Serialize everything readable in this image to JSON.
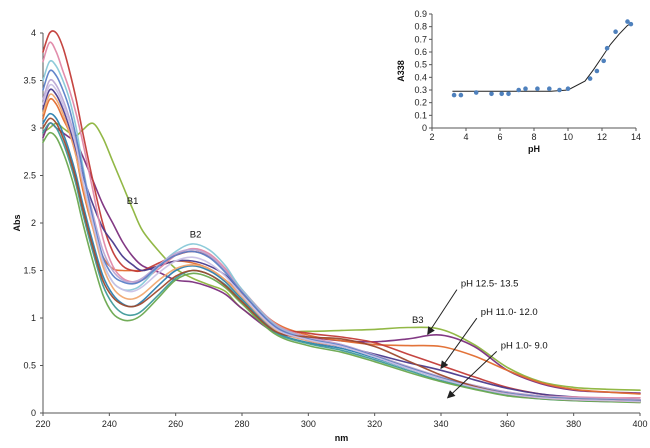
{
  "chart_data": [
    {
      "type": "line",
      "xlabel": "nm",
      "ylabel": "Abs",
      "xlim": [
        220,
        400
      ],
      "ylim": [
        0,
        4
      ],
      "x_ticks": [
        220,
        240,
        260,
        280,
        300,
        320,
        340,
        360,
        380,
        400
      ],
      "y_ticks": [
        0,
        0.5,
        1,
        1.5,
        2,
        2.5,
        3,
        3.5,
        4
      ],
      "grid": false,
      "band_labels": [
        {
          "text": "B1",
          "x": 247,
          "y": 2.2
        },
        {
          "text": "B2",
          "x": 266,
          "y": 1.85
        },
        {
          "text": "B3",
          "x": 333,
          "y": 0.95
        }
      ],
      "annotations": [
        {
          "text": "pH 12.5- 13.5",
          "text_at": [
            346,
            1.33
          ],
          "arrow_to": [
            336,
            0.83
          ]
        },
        {
          "text": "pH 11.0- 12.0",
          "text_at": [
            352,
            1.03
          ],
          "arrow_to": [
            340,
            0.47
          ]
        },
        {
          "text": "pH 1.0- 9.0",
          "text_at": [
            358,
            0.68
          ],
          "arrow_to": [
            342,
            0.16
          ]
        }
      ],
      "x": [
        220,
        222,
        224,
        226,
        228,
        230,
        232,
        235,
        238,
        241,
        244,
        247,
        250,
        255,
        260,
        265,
        270,
        275,
        280,
        290,
        300,
        310,
        320,
        330,
        340,
        350,
        360,
        370,
        380,
        390,
        400
      ],
      "series": [
        {
          "color": "#8cb43c",
          "values": [
            2.95,
            3.0,
            3.05,
            3.0,
            2.95,
            2.92,
            2.98,
            3.05,
            2.9,
            2.65,
            2.4,
            2.15,
            1.92,
            1.7,
            1.52,
            1.42,
            1.35,
            1.28,
            1.1,
            0.88,
            0.86,
            0.87,
            0.88,
            0.9,
            0.88,
            0.72,
            0.48,
            0.33,
            0.27,
            0.25,
            0.24
          ]
        },
        {
          "color": "#7b2e7d",
          "values": [
            2.9,
            3.05,
            3.0,
            2.95,
            2.9,
            2.85,
            2.7,
            2.45,
            2.2,
            2.0,
            1.8,
            1.65,
            1.55,
            1.48,
            1.4,
            1.38,
            1.33,
            1.25,
            1.1,
            0.85,
            0.8,
            0.76,
            0.75,
            0.78,
            0.82,
            0.7,
            0.45,
            0.31,
            0.24,
            0.22,
            0.21
          ]
        },
        {
          "color": "#e26c2e",
          "values": [
            3.1,
            3.3,
            3.25,
            3.1,
            2.95,
            2.7,
            2.35,
            1.95,
            1.65,
            1.52,
            1.5,
            1.5,
            1.5,
            1.55,
            1.6,
            1.58,
            1.52,
            1.4,
            1.25,
            0.95,
            0.82,
            0.76,
            0.72,
            0.71,
            0.7,
            0.6,
            0.45,
            0.32,
            0.25,
            0.22,
            0.2
          ]
        },
        {
          "color": "#c23b37",
          "values": [
            3.8,
            4.0,
            4.0,
            3.85,
            3.6,
            3.3,
            2.95,
            2.45,
            2.0,
            1.7,
            1.55,
            1.5,
            1.5,
            1.58,
            1.66,
            1.7,
            1.65,
            1.5,
            1.28,
            0.92,
            0.84,
            0.8,
            0.74,
            0.62,
            0.5,
            0.38,
            0.27,
            0.2,
            0.16,
            0.14,
            0.13
          ]
        },
        {
          "color": "#4a3a8c",
          "values": [
            3.2,
            3.4,
            3.35,
            3.2,
            3.0,
            2.75,
            2.5,
            2.2,
            1.95,
            1.8,
            1.65,
            1.56,
            1.5,
            1.55,
            1.6,
            1.6,
            1.55,
            1.45,
            1.27,
            0.9,
            0.76,
            0.7,
            0.62,
            0.53,
            0.45,
            0.35,
            0.26,
            0.2,
            0.17,
            0.15,
            0.14
          ]
        },
        {
          "color": "#e088a8",
          "values": [
            3.7,
            3.9,
            3.8,
            3.6,
            3.4,
            3.15,
            2.85,
            2.35,
            1.85,
            1.55,
            1.42,
            1.38,
            1.4,
            1.52,
            1.66,
            1.73,
            1.68,
            1.52,
            1.3,
            0.94,
            0.8,
            0.72,
            0.6,
            0.48,
            0.37,
            0.29,
            0.22,
            0.18,
            0.17,
            0.16,
            0.16
          ]
        },
        {
          "color": "#2a7fb0",
          "values": [
            3.05,
            3.15,
            3.1,
            2.95,
            2.75,
            2.5,
            2.2,
            1.8,
            1.45,
            1.25,
            1.15,
            1.12,
            1.18,
            1.35,
            1.5,
            1.55,
            1.5,
            1.38,
            1.2,
            0.86,
            0.74,
            0.68,
            0.58,
            0.47,
            0.36,
            0.27,
            0.2,
            0.16,
            0.14,
            0.13,
            0.12
          ]
        },
        {
          "color": "#88c8d8",
          "values": [
            3.5,
            3.7,
            3.65,
            3.5,
            3.3,
            3.0,
            2.6,
            2.05,
            1.6,
            1.38,
            1.3,
            1.3,
            1.36,
            1.55,
            1.7,
            1.78,
            1.72,
            1.55,
            1.3,
            0.93,
            0.79,
            0.71,
            0.6,
            0.48,
            0.37,
            0.28,
            0.21,
            0.17,
            0.15,
            0.14,
            0.13
          ]
        },
        {
          "color": "#b9a6d4",
          "values": [
            3.3,
            3.5,
            3.45,
            3.3,
            3.1,
            2.85,
            2.55,
            2.1,
            1.72,
            1.5,
            1.4,
            1.38,
            1.42,
            1.56,
            1.68,
            1.72,
            1.66,
            1.5,
            1.28,
            0.92,
            0.79,
            0.72,
            0.61,
            0.49,
            0.38,
            0.29,
            0.22,
            0.18,
            0.16,
            0.15,
            0.14
          ]
        },
        {
          "color": "#f0a870",
          "values": [
            3.15,
            3.35,
            3.3,
            3.15,
            2.95,
            2.7,
            2.4,
            1.95,
            1.55,
            1.32,
            1.22,
            1.2,
            1.25,
            1.4,
            1.52,
            1.56,
            1.52,
            1.4,
            1.22,
            0.88,
            0.76,
            0.7,
            0.6,
            0.48,
            0.37,
            0.28,
            0.21,
            0.17,
            0.15,
            0.14,
            0.13
          ]
        },
        {
          "color": "#3f9a9a",
          "values": [
            2.95,
            3.05,
            3.0,
            2.85,
            2.65,
            2.4,
            2.1,
            1.7,
            1.35,
            1.15,
            1.05,
            1.03,
            1.08,
            1.25,
            1.42,
            1.5,
            1.46,
            1.35,
            1.18,
            0.85,
            0.73,
            0.66,
            0.56,
            0.45,
            0.34,
            0.26,
            0.19,
            0.15,
            0.13,
            0.12,
            0.12
          ]
        },
        {
          "color": "#6aa84f",
          "values": [
            2.85,
            2.95,
            2.9,
            2.75,
            2.55,
            2.3,
            2.0,
            1.6,
            1.25,
            1.05,
            0.98,
            0.98,
            1.04,
            1.22,
            1.4,
            1.47,
            1.43,
            1.32,
            1.15,
            0.83,
            0.71,
            0.64,
            0.54,
            0.43,
            0.33,
            0.25,
            0.18,
            0.15,
            0.13,
            0.12,
            0.11
          ]
        },
        {
          "color": "#5a7fc8",
          "values": [
            3.4,
            3.6,
            3.55,
            3.4,
            3.2,
            2.9,
            2.55,
            2.05,
            1.65,
            1.45,
            1.38,
            1.36,
            1.4,
            1.55,
            1.66,
            1.7,
            1.64,
            1.48,
            1.27,
            0.91,
            0.78,
            0.71,
            0.6,
            0.48,
            0.37,
            0.28,
            0.21,
            0.17,
            0.15,
            0.14,
            0.13
          ]
        },
        {
          "color": "#9e4a2e",
          "values": [
            3.0,
            3.1,
            3.05,
            2.9,
            2.7,
            2.45,
            2.15,
            1.75,
            1.4,
            1.22,
            1.14,
            1.12,
            1.16,
            1.3,
            1.44,
            1.5,
            1.46,
            1.34,
            1.17,
            0.86,
            0.8,
            0.78,
            0.7,
            0.55,
            0.4,
            0.28,
            0.2,
            0.16,
            0.14,
            0.13,
            0.12
          ]
        },
        {
          "color": "#c9c0e6",
          "values": [
            3.25,
            3.45,
            3.4,
            3.25,
            3.05,
            2.8,
            2.45,
            2.0,
            1.6,
            1.38,
            1.3,
            1.28,
            1.33,
            1.48,
            1.6,
            1.64,
            1.58,
            1.44,
            1.24,
            0.89,
            0.77,
            0.7,
            0.59,
            0.47,
            0.36,
            0.27,
            0.2,
            0.16,
            0.14,
            0.13,
            0.12
          ]
        }
      ]
    },
    {
      "type": "scatter",
      "xlabel": "pH",
      "ylabel": "A338",
      "xlim": [
        2,
        14
      ],
      "ylim": [
        0,
        0.9
      ],
      "x_ticks": [
        2,
        4,
        6,
        8,
        10,
        12,
        14
      ],
      "y_ticks": [
        0,
        0.1,
        0.2,
        0.3,
        0.4,
        0.5,
        0.6,
        0.7,
        0.8,
        0.9
      ],
      "grid": false,
      "points": {
        "color": "#4f81bd",
        "x": [
          3.3,
          3.7,
          4.6,
          5.5,
          6.1,
          6.5,
          7.1,
          7.5,
          8.2,
          8.9,
          9.5,
          10.0,
          11.3,
          11.7,
          12.1,
          12.3,
          12.8,
          13.5,
          13.7
        ],
        "y": [
          0.26,
          0.26,
          0.28,
          0.27,
          0.27,
          0.27,
          0.3,
          0.31,
          0.31,
          0.31,
          0.3,
          0.31,
          0.39,
          0.45,
          0.53,
          0.63,
          0.76,
          0.84,
          0.82
        ]
      },
      "fit_line": {
        "color": "#222222",
        "x": [
          3.2,
          4,
          5,
          6,
          7,
          8,
          9,
          10,
          11,
          11.5,
          12,
          12.5,
          13,
          13.5,
          13.8
        ],
        "y": [
          0.29,
          0.29,
          0.29,
          0.29,
          0.29,
          0.29,
          0.29,
          0.3,
          0.37,
          0.46,
          0.56,
          0.66,
          0.74,
          0.81,
          0.83
        ]
      }
    }
  ]
}
